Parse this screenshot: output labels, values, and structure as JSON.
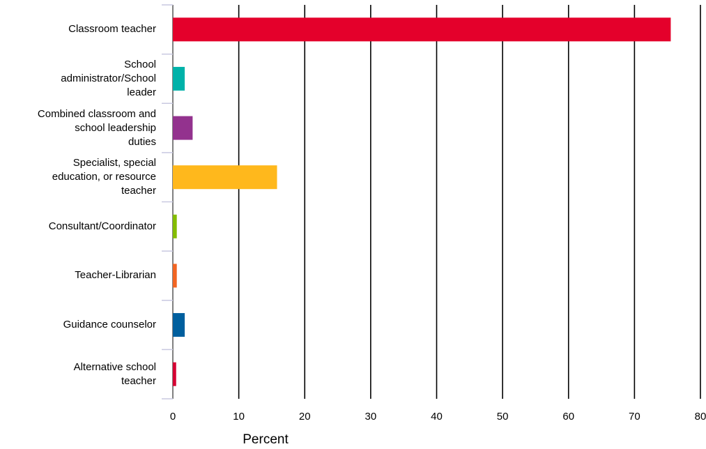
{
  "chart_data": {
    "type": "bar",
    "orientation": "horizontal",
    "categories": [
      "Classroom teacher",
      "School\nadministrator/School\nleader",
      "Combined classroom and\nschool leadership\nduties",
      "Specialist, special\neducation, or resource\nteacher",
      "Consultant/Coordinator",
      "Teacher-Librarian",
      "Guidance counselor",
      "Alternative school\nteacher"
    ],
    "values": [
      75.5,
      1.8,
      3.0,
      15.8,
      0.6,
      0.6,
      1.8,
      0.5
    ],
    "colors": [
      "#e4002b",
      "#00b2a9",
      "#93328e",
      "#ffb81c",
      "#84bd00",
      "#f26522",
      "#005f9e",
      "#d50032"
    ],
    "xlabel": "Percent",
    "ylabel": "",
    "xlim": [
      0,
      80
    ],
    "x_ticks": [
      "0",
      "10",
      "20",
      "30",
      "40",
      "50",
      "60",
      "70",
      "80"
    ],
    "grid": "vertical",
    "legend": "none"
  }
}
